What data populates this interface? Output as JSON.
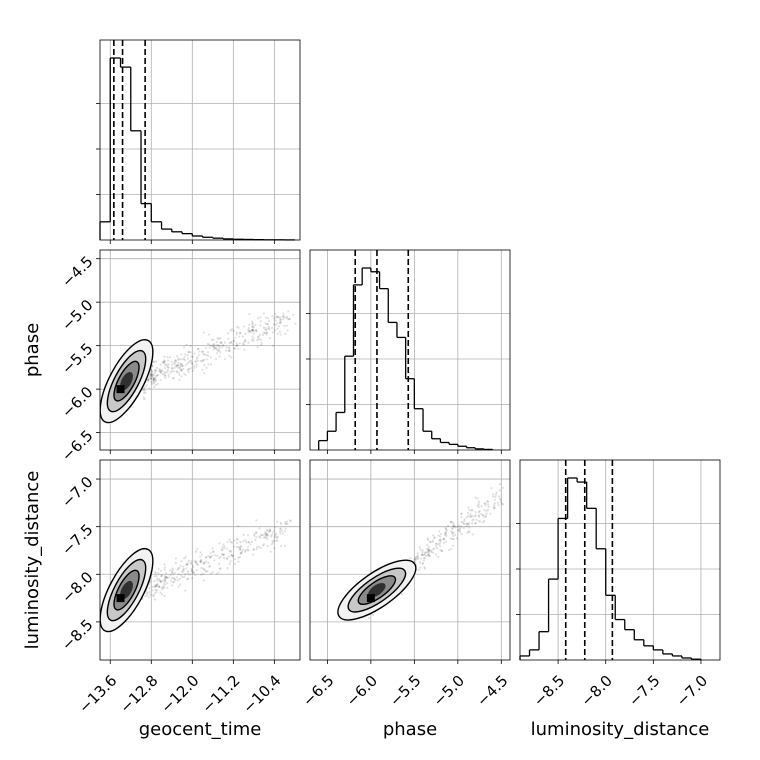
{
  "chart_data": {
    "type": "corner",
    "grid": true,
    "parameters": [
      "geocent_time",
      "phase",
      "luminosity_distance"
    ],
    "axes": {
      "geocent_time": {
        "label": "geocent_time",
        "range": [
          -13.8,
          -9.9
        ],
        "ticks": [
          -13.6,
          -12.8,
          -12.0,
          -11.2,
          -10.4
        ],
        "tick_labels": [
          "−13.6",
          "−12.8",
          "−12.0",
          "−11.2",
          "−10.4"
        ]
      },
      "phase": {
        "label": "phase",
        "range": [
          -6.7,
          -4.4
        ],
        "ticks": [
          -6.5,
          -6.0,
          -5.5,
          -5.0,
          -4.5
        ],
        "tick_labels": [
          "−6.5",
          "−6.0",
          "−5.5",
          "−5.0",
          "−4.5"
        ]
      },
      "luminosity_distance": {
        "label": "luminosity_distance",
        "range": [
          -8.9,
          -6.8
        ],
        "ticks": [
          -8.5,
          -8.0,
          -7.5,
          -7.0
        ],
        "tick_labels": [
          "−8.5",
          "−8.0",
          "−7.5",
          "−7.0"
        ]
      }
    },
    "histograms": {
      "geocent_time": {
        "edges": [
          -13.8,
          -13.6,
          -13.4,
          -13.2,
          -13.0,
          -12.8,
          -12.6,
          -12.4,
          -12.2,
          -12.0,
          -11.8,
          -11.6,
          -11.4,
          -11.2,
          -11.0,
          -10.8,
          -10.6,
          -10.4,
          -10.2,
          -10.0
        ],
        "counts": [
          0.1,
          1.0,
          0.95,
          0.6,
          0.2,
          0.1,
          0.06,
          0.045,
          0.035,
          0.022,
          0.015,
          0.01,
          0.006,
          0.004,
          0.003,
          0.002,
          0.001,
          0.001,
          0.0005
        ],
        "quantiles": [
          -13.53,
          -13.36,
          -12.92
        ]
      },
      "phase": {
        "edges": [
          -6.6,
          -6.5,
          -6.4,
          -6.3,
          -6.2,
          -6.1,
          -6.0,
          -5.9,
          -5.8,
          -5.7,
          -5.6,
          -5.5,
          -5.4,
          -5.3,
          -5.2,
          -5.1,
          -5.0,
          -4.9,
          -4.8,
          -4.7,
          -4.6
        ],
        "counts": [
          0.05,
          0.1,
          0.2,
          0.5,
          0.88,
          0.97,
          0.95,
          0.86,
          0.68,
          0.6,
          0.38,
          0.22,
          0.1,
          0.06,
          0.04,
          0.03,
          0.02,
          0.012,
          0.006,
          0.003
        ],
        "quantiles": [
          -6.18,
          -5.93,
          -5.57
        ]
      },
      "luminosity_distance": {
        "edges": [
          -8.9,
          -8.8,
          -8.7,
          -8.6,
          -8.5,
          -8.4,
          -8.3,
          -8.2,
          -8.1,
          -8.0,
          -7.9,
          -7.8,
          -7.7,
          -7.6,
          -7.5,
          -7.4,
          -7.3,
          -7.2,
          -7.1,
          -7.0
        ],
        "counts": [
          0.02,
          0.05,
          0.14,
          0.4,
          0.7,
          0.9,
          0.88,
          0.75,
          0.55,
          0.32,
          0.2,
          0.15,
          0.1,
          0.07,
          0.05,
          0.03,
          0.02,
          0.01,
          0.004
        ],
        "quantiles": [
          -8.42,
          -8.22,
          -7.93
        ]
      }
    },
    "scatter_panels": [
      {
        "x": "geocent_time",
        "y": "phase",
        "center": [
          -13.4,
          -6.0
        ],
        "slope": 0.42
      },
      {
        "x": "geocent_time",
        "y": "luminosity_distance",
        "center": [
          -13.4,
          -8.25
        ],
        "slope": 0.42
      },
      {
        "x": "phase",
        "y": "luminosity_distance",
        "center": [
          -6.0,
          -8.25
        ],
        "slope": 0.8
      }
    ]
  }
}
